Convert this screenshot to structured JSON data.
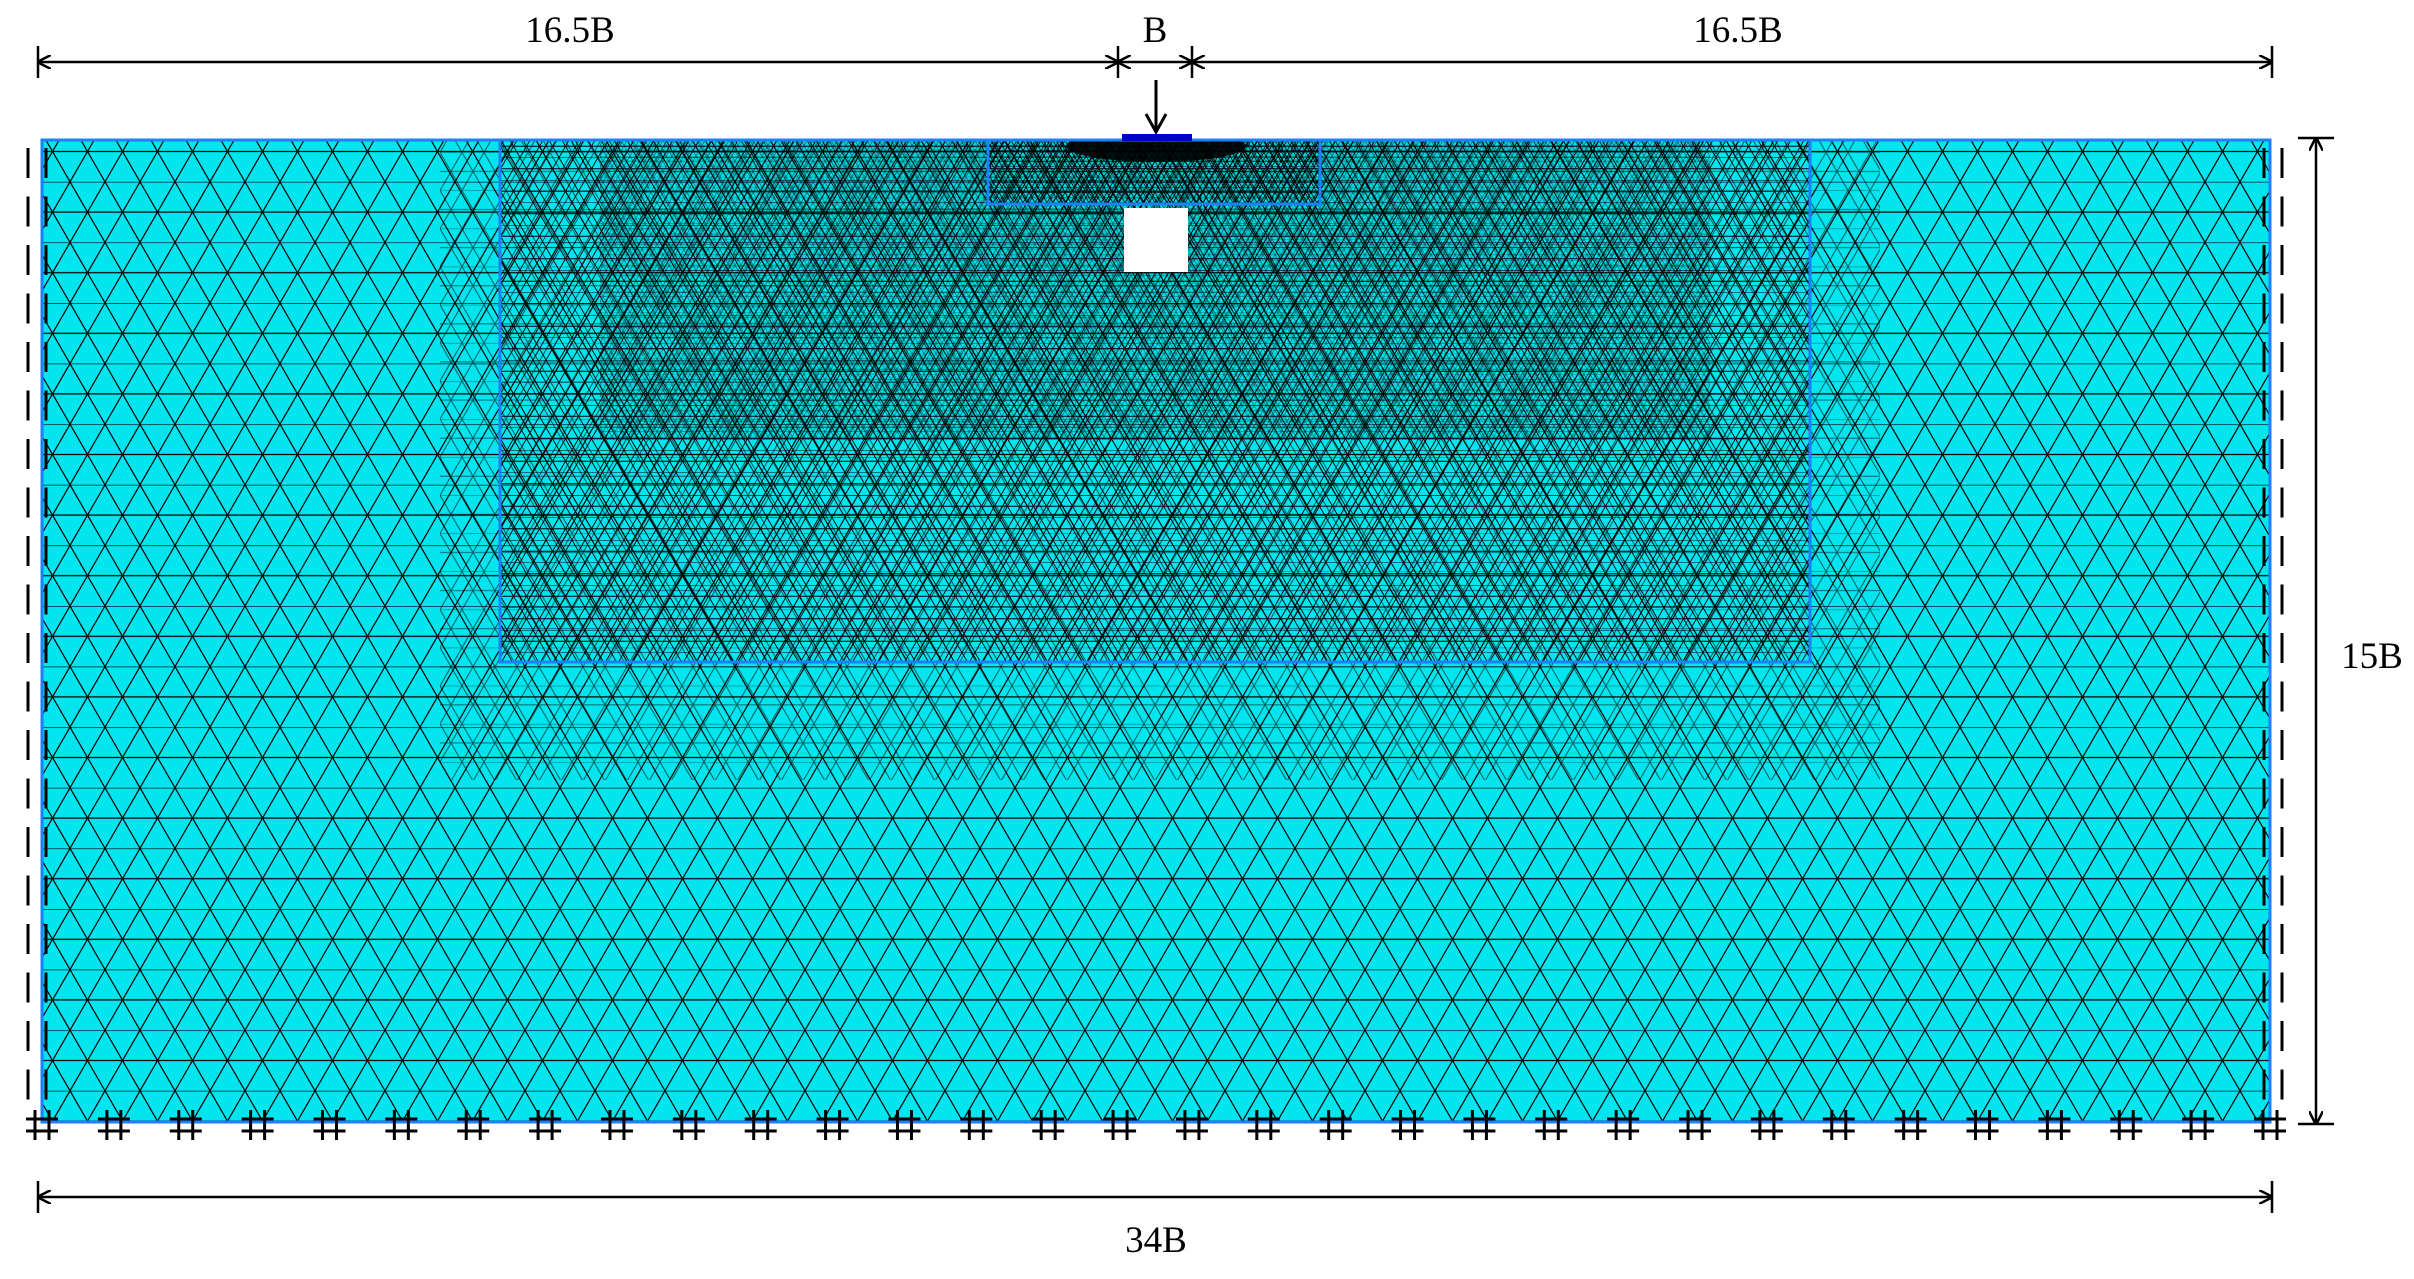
{
  "dimensions": {
    "left_width": "16.5B",
    "footing_width": "B",
    "right_width": "16.5B",
    "total_width": "34B",
    "depth": "15B"
  },
  "colors": {
    "soil_fill": "#00e5ee",
    "mesh_line": "#000000",
    "region_outline": "#1e7fff",
    "footing": "#0000cc",
    "void_fill": "#ffffff",
    "dimension_line": "#000000"
  },
  "symbols": {
    "side_support": "roller-support-icon",
    "base_support": "pinned-support-icon",
    "applied_load": "load-arrow-icon"
  }
}
